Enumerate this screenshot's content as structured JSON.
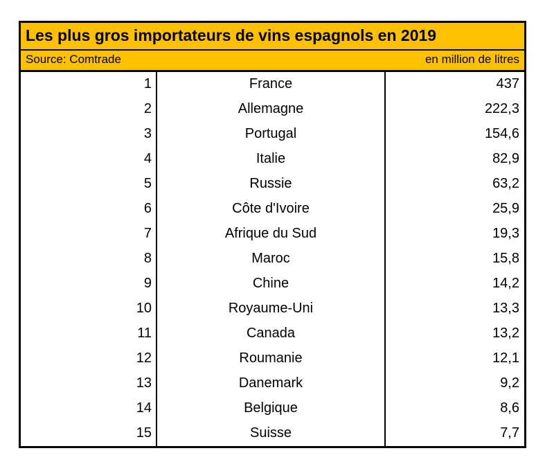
{
  "table": {
    "title": "Les plus gros importateurs de vins espagnols en 2019",
    "source": "Source: Comtrade",
    "unit": "en million de litres",
    "rows": [
      {
        "rank": "1",
        "country": "France",
        "value": "437"
      },
      {
        "rank": "2",
        "country": "Allemagne",
        "value": "222,3"
      },
      {
        "rank": "3",
        "country": "Portugal",
        "value": "154,6"
      },
      {
        "rank": "4",
        "country": "Italie",
        "value": "82,9"
      },
      {
        "rank": "5",
        "country": "Russie",
        "value": "63,2"
      },
      {
        "rank": "6",
        "country": "Côte d'Ivoire",
        "value": "25,9"
      },
      {
        "rank": "7",
        "country": "Afrique du Sud",
        "value": "19,3"
      },
      {
        "rank": "8",
        "country": "Maroc",
        "value": "15,8"
      },
      {
        "rank": "9",
        "country": "Chine",
        "value": "14,2"
      },
      {
        "rank": "10",
        "country": "Royaume-Uni",
        "value": "13,3"
      },
      {
        "rank": "11",
        "country": "Canada",
        "value": "13,2"
      },
      {
        "rank": "12",
        "country": "Roumanie",
        "value": "12,1"
      },
      {
        "rank": "13",
        "country": "Danemark",
        "value": "9,2"
      },
      {
        "rank": "14",
        "country": "Belgique",
        "value": "8,6"
      },
      {
        "rank": "15",
        "country": "Suisse",
        "value": "7,7"
      }
    ]
  },
  "colors": {
    "header_bg": "#FFC000",
    "border": "#000000",
    "text": "#000000",
    "body_bg": "#FFFFFF"
  },
  "chart_data": {
    "type": "table",
    "title": "Les plus gros importateurs de vins espagnols en 2019",
    "source": "Source: Comtrade",
    "unit": "en million de litres",
    "columns": [
      "rang",
      "pays",
      "volume_millions_litres"
    ],
    "categories": [
      "France",
      "Allemagne",
      "Portugal",
      "Italie",
      "Russie",
      "Côte d'Ivoire",
      "Afrique du Sud",
      "Maroc",
      "Chine",
      "Royaume-Uni",
      "Canada",
      "Roumanie",
      "Danemark",
      "Belgique",
      "Suisse"
    ],
    "values": [
      437,
      222.3,
      154.6,
      82.9,
      63.2,
      25.9,
      19.3,
      15.8,
      14.2,
      13.3,
      13.2,
      12.1,
      9.2,
      8.6,
      7.7
    ]
  }
}
